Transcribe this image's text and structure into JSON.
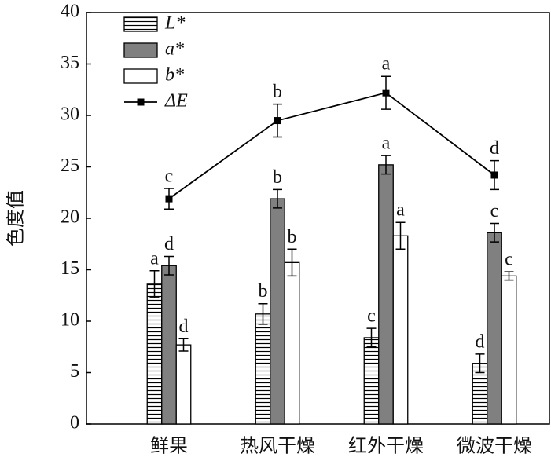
{
  "chart_data": {
    "type": "bar-line",
    "y_label": "色度值",
    "categories": [
      "鲜果",
      "热风干燥",
      "红外干燥",
      "微波干燥"
    ],
    "ylim": [
      0,
      40
    ],
    "yticks": [
      0,
      5,
      10,
      15,
      20,
      25,
      30,
      35,
      40
    ],
    "series": [
      {
        "name": "L*",
        "type": "bar",
        "color": "#ffffff",
        "hatch": "horizontal",
        "values": [
          13.6,
          10.7,
          8.4,
          5.9
        ],
        "errors": [
          1.3,
          1.0,
          0.9,
          0.9
        ],
        "letters": [
          "a",
          "b",
          "c",
          "d"
        ]
      },
      {
        "name": "a*",
        "type": "bar",
        "color": "#808080",
        "values": [
          15.4,
          21.9,
          25.2,
          18.6
        ],
        "errors": [
          0.9,
          0.9,
          0.9,
          0.9
        ],
        "letters": [
          "d",
          "b",
          "a",
          "c"
        ]
      },
      {
        "name": "b*",
        "type": "bar",
        "color": "#ffffff",
        "values": [
          7.7,
          15.7,
          18.3,
          14.4
        ],
        "errors": [
          0.6,
          1.3,
          1.3,
          0.4
        ],
        "letters": [
          "d",
          "b",
          "a",
          "c"
        ]
      },
      {
        "name": "ΔE",
        "type": "line",
        "color": "#000000",
        "values": [
          21.9,
          29.5,
          32.2,
          24.2
        ],
        "errors": [
          1.0,
          1.6,
          1.6,
          1.4
        ],
        "letters": [
          "c",
          "b",
          "a",
          "d"
        ]
      }
    ]
  }
}
